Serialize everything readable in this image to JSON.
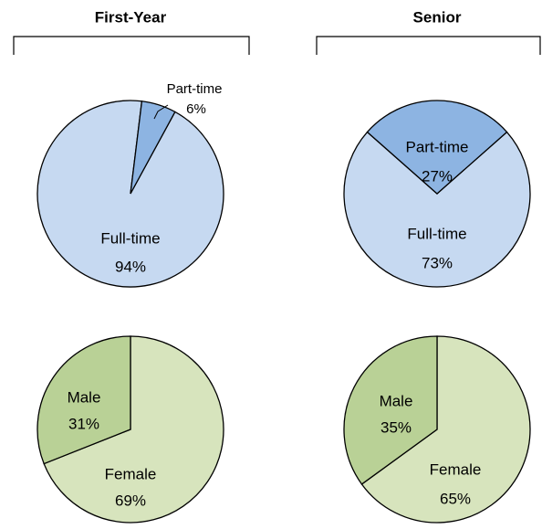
{
  "chart_data": [
    {
      "type": "pie",
      "title": "First-Year",
      "categories": [
        "Full-time",
        "Part-time"
      ],
      "values": [
        94,
        6
      ],
      "value_labels": [
        "94%",
        "6%"
      ],
      "colors": [
        "#c6d9f1",
        "#8db4e2"
      ]
    },
    {
      "type": "pie",
      "title": "Senior",
      "categories": [
        "Full-time",
        "Part-time"
      ],
      "values": [
        73,
        27
      ],
      "value_labels": [
        "73%",
        "27%"
      ],
      "colors": [
        "#c6d9f1",
        "#8db4e2"
      ]
    },
    {
      "type": "pie",
      "categories": [
        "Female",
        "Male"
      ],
      "values": [
        69,
        31
      ],
      "value_labels": [
        "69%",
        "31%"
      ],
      "colors": [
        "#d7e4bd",
        "#b9d196"
      ]
    },
    {
      "type": "pie",
      "categories": [
        "Female",
        "Male"
      ],
      "values": [
        65,
        35
      ],
      "value_labels": [
        "65%",
        "35%"
      ],
      "colors": [
        "#d7e4bd",
        "#b9d196"
      ]
    }
  ]
}
